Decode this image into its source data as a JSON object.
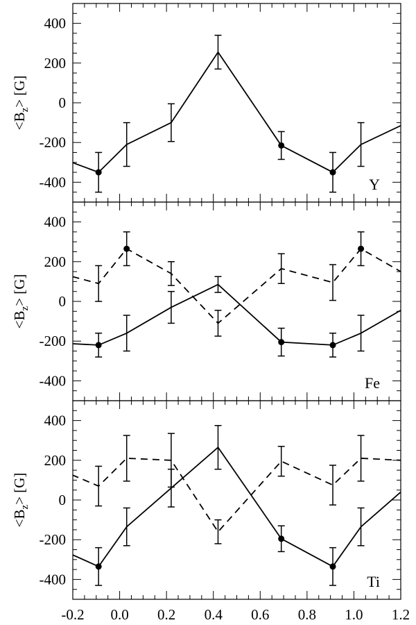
{
  "chart_data": {
    "type": "line",
    "xlim": [
      -0.2,
      1.2
    ],
    "x_ticks": [
      -0.2,
      0.0,
      0.2,
      0.4,
      0.6,
      0.8,
      1.0,
      1.2
    ],
    "x_tick_labels": [
      "-0.2",
      "0.0",
      "0.2",
      "0.4",
      "0.6",
      "0.8",
      "1.0",
      "1.2"
    ],
    "ylim": [
      -500,
      500
    ],
    "y_ticks": [
      -400,
      -200,
      0,
      200,
      400
    ],
    "y_tick_labels": [
      "-400",
      "-200",
      "0",
      "200",
      "400"
    ],
    "ylabel": "<B",
    "ylabel_sub": "z",
    "ylabel_unit": "> [G]",
    "grid": false,
    "panels": [
      {
        "label": "Y",
        "series": [
          {
            "style": "solid",
            "x": [
              -0.25,
              -0.09,
              0.03,
              0.22,
              0.42,
              0.69,
              0.91,
              1.03,
              1.2
            ],
            "y": [
              -280,
              -350,
              -210,
              -100,
              255,
              -215,
              -350,
              -210,
              -115
            ],
            "err": [
              null,
              100,
              110,
              95,
              85,
              70,
              100,
              110,
              null
            ],
            "marker": [
              false,
              true,
              false,
              false,
              false,
              true,
              true,
              false,
              false
            ]
          }
        ]
      },
      {
        "label": "Fe",
        "series": [
          {
            "style": "solid",
            "x": [
              -0.25,
              -0.09,
              0.03,
              0.22,
              0.42,
              0.69,
              0.91,
              1.03,
              1.2
            ],
            "y": [
              -210,
              -220,
              -160,
              -30,
              85,
              -205,
              -220,
              -160,
              -45
            ],
            "err": [
              null,
              60,
              90,
              80,
              40,
              70,
              60,
              90,
              null
            ],
            "marker": [
              false,
              true,
              false,
              false,
              false,
              true,
              true,
              false,
              false
            ]
          },
          {
            "style": "dashed",
            "x": [
              -0.25,
              -0.09,
              0.03,
              0.22,
              0.42,
              0.69,
              0.91,
              1.03,
              1.2
            ],
            "y": [
              140,
              90,
              265,
              140,
              -110,
              165,
              95,
              265,
              150
            ],
            "err": [
              null,
              90,
              85,
              60,
              65,
              75,
              90,
              85,
              null
            ],
            "marker": [
              false,
              false,
              true,
              false,
              false,
              false,
              false,
              true,
              false
            ]
          }
        ]
      },
      {
        "label": "Ti",
        "series": [
          {
            "style": "solid",
            "x": [
              -0.25,
              -0.09,
              0.03,
              0.22,
              0.42,
              0.69,
              0.91,
              1.03,
              1.2
            ],
            "y": [
              -250,
              -335,
              -135,
              60,
              265,
              -195,
              -335,
              -135,
              40
            ],
            "err": [
              null,
              95,
              95,
              95,
              110,
              65,
              95,
              95,
              null
            ],
            "marker": [
              false,
              true,
              false,
              false,
              false,
              true,
              true,
              false,
              false
            ]
          },
          {
            "style": "dashed",
            "x": [
              -0.25,
              -0.09,
              0.03,
              0.22,
              0.42,
              0.69,
              0.91,
              1.03,
              1.2
            ],
            "y": [
              150,
              70,
              210,
              200,
              -160,
              195,
              75,
              210,
              200
            ],
            "err": [
              null,
              100,
              115,
              135,
              60,
              75,
              100,
              115,
              null
            ],
            "marker": [
              false,
              false,
              false,
              false,
              false,
              false,
              false,
              false,
              false
            ]
          }
        ]
      }
    ]
  }
}
